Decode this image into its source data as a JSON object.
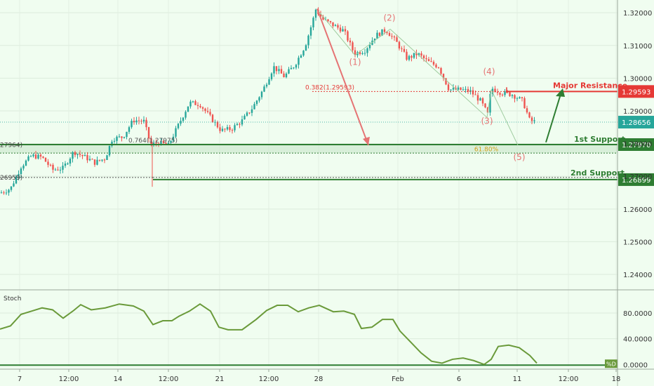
{
  "colors": {
    "background": "#f0fdf0",
    "candle_up": "#26a69a",
    "candle_down": "#ef5350",
    "support": "#2e7d32",
    "resistance": "#e53935",
    "wave": "#e57373",
    "fib": "#d4a017",
    "stoch": "#6a9a3a",
    "axis_text": "#333333"
  },
  "chart_data": [
    {
      "type": "candlestick",
      "title": "",
      "y_axis": {
        "ticks": [
          1.32,
          1.31,
          1.3,
          1.29,
          1.28,
          1.27,
          1.26,
          1.25,
          1.24
        ],
        "tick_labels": [
          "1.32000",
          "1.31000",
          "1.30000",
          "1.29000",
          "1.28000",
          "1.27000",
          "1.26000",
          "1.25000",
          "1.24000"
        ],
        "ylim": [
          1.2355,
          1.3239
        ]
      },
      "x_axis": {
        "tick_labels": [
          "7",
          "12:00",
          "14",
          "12:00",
          "21",
          "12:00",
          "28",
          "Feb",
          "6",
          "11",
          "12:00",
          "18"
        ],
        "xlim": [
          0,
          880
        ]
      },
      "price_path": [
        [
          0,
          1.2649
        ],
        [
          15,
          1.2662
        ],
        [
          30,
          1.273
        ],
        [
          45,
          1.2763
        ],
        [
          60,
          1.2758
        ],
        [
          75,
          1.272
        ],
        [
          90,
          1.2725
        ],
        [
          105,
          1.2775
        ],
        [
          120,
          1.276
        ],
        [
          135,
          1.2742
        ],
        [
          150,
          1.2755
        ],
        [
          160,
          1.2815
        ],
        [
          175,
          1.282
        ],
        [
          190,
          1.2872
        ],
        [
          205,
          1.2868
        ],
        [
          215,
          1.2795
        ],
        [
          225,
          1.2803
        ],
        [
          240,
          1.2795
        ],
        [
          255,
          1.286
        ],
        [
          270,
          1.2925
        ],
        [
          285,
          1.292
        ],
        [
          300,
          1.288
        ],
        [
          315,
          1.284
        ],
        [
          330,
          1.2845
        ],
        [
          345,
          1.287
        ],
        [
          360,
          1.291
        ],
        [
          375,
          1.2965
        ],
        [
          390,
          1.3035
        ],
        [
          405,
          1.3005
        ],
        [
          420,
          1.304
        ],
        [
          435,
          1.31
        ],
        [
          445,
          1.317
        ],
        [
          450,
          1.321
        ],
        [
          460,
          1.318
        ],
        [
          475,
          1.3162
        ],
        [
          490,
          1.3145
        ],
        [
          505,
          1.3075
        ],
        [
          520,
          1.3085
        ],
        [
          535,
          1.313
        ],
        [
          550,
          1.3148
        ],
        [
          565,
          1.311
        ],
        [
          580,
          1.306
        ],
        [
          595,
          1.3075
        ],
        [
          610,
          1.305
        ],
        [
          625,
          1.3035
        ],
        [
          640,
          1.2965
        ],
        [
          655,
          1.2965
        ],
        [
          670,
          1.296
        ],
        [
          685,
          1.293
        ],
        [
          695,
          1.289
        ],
        [
          700,
          1.297
        ],
        [
          715,
          1.2955
        ],
        [
          730,
          1.295
        ],
        [
          745,
          1.293
        ],
        [
          755,
          1.287
        ],
        [
          765,
          1.2866
        ]
      ],
      "current_price": {
        "value": 1.28656,
        "label": "1.28656"
      },
      "levels": [
        {
          "name": "Major Resistance",
          "value": 1.29593,
          "label": "1.29593",
          "kind": "resistance"
        },
        {
          "name": "1st Support",
          "value": 1.2797,
          "label": "1.27970",
          "kind": "support"
        },
        {
          "name": "2nd Support",
          "value": 1.26899,
          "label": "1.26899",
          "kind": "support"
        }
      ],
      "fib_labels": [
        {
          "text": "0.382(1.29593)",
          "x": 470,
          "y": 1.29593
        },
        {
          "text": "0.764(1.27975)",
          "x": 218,
          "y": 1.27975
        },
        {
          "text": "61.80%",
          "x": 693,
          "y": 1.277
        }
      ],
      "left_edge_labels": [
        {
          "text": "27964)",
          "y": 1.27964
        },
        {
          "text": "26959)",
          "y": 1.26959
        }
      ],
      "waves": [
        {
          "label": "(1)",
          "x": 506,
          "y": 1.304
        },
        {
          "label": "(2)",
          "x": 555,
          "y": 1.3176
        },
        {
          "label": "(3)",
          "x": 694,
          "y": 1.286
        },
        {
          "label": "(4)",
          "x": 697,
          "y": 1.3012
        },
        {
          "label": "(5)",
          "x": 740,
          "y": 1.275
        }
      ]
    },
    {
      "type": "line",
      "title": "Stoch",
      "y_axis": {
        "ticks": [
          80,
          40,
          0
        ],
        "tick_labels": [
          "80.0000",
          "40.0000",
          "0.0000"
        ],
        "ylim": [
          -3,
          115
        ]
      },
      "series": [
        {
          "name": "%D",
          "points": [
            [
              0,
              55
            ],
            [
              15,
              60
            ],
            [
              30,
              78
            ],
            [
              45,
              83
            ],
            [
              60,
              88
            ],
            [
              75,
              85
            ],
            [
              90,
              72
            ],
            [
              105,
              84
            ],
            [
              115,
              93
            ],
            [
              130,
              85
            ],
            [
              150,
              88
            ],
            [
              170,
              94
            ],
            [
              190,
              91
            ],
            [
              205,
              83
            ],
            [
              218,
              62
            ],
            [
              232,
              68
            ],
            [
              245,
              68
            ],
            [
              255,
              75
            ],
            [
              270,
              83
            ],
            [
              285,
              94
            ],
            [
              300,
              83
            ],
            [
              312,
              58
            ],
            [
              325,
              54
            ],
            [
              345,
              54
            ],
            [
              365,
              70
            ],
            [
              380,
              84
            ],
            [
              395,
              92
            ],
            [
              410,
              92
            ],
            [
              425,
              82
            ],
            [
              440,
              88
            ],
            [
              455,
              92
            ],
            [
              475,
              82
            ],
            [
              490,
              83
            ],
            [
              505,
              78
            ],
            [
              515,
              56
            ],
            [
              530,
              58
            ],
            [
              545,
              70
            ],
            [
              560,
              70
            ],
            [
              570,
              52
            ],
            [
              585,
              35
            ],
            [
              600,
              18
            ],
            [
              615,
              5
            ],
            [
              630,
              2
            ],
            [
              645,
              8
            ],
            [
              660,
              10
            ],
            [
              675,
              6
            ],
            [
              690,
              0
            ],
            [
              700,
              8
            ],
            [
              710,
              28
            ],
            [
              725,
              30
            ],
            [
              740,
              26
            ],
            [
              755,
              14
            ],
            [
              765,
              2
            ]
          ]
        }
      ]
    }
  ]
}
